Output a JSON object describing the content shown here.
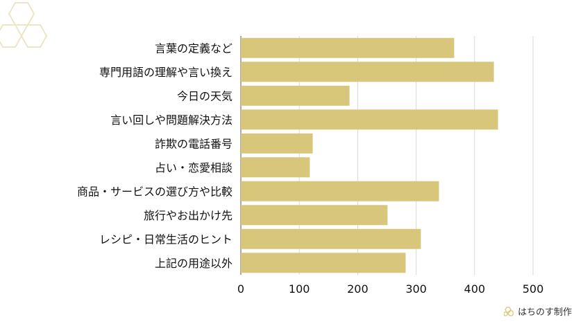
{
  "chart_data": {
    "type": "bar",
    "orientation": "horizontal",
    "categories": [
      "言葉の定義など",
      "専門用語の理解や言い換え",
      "今日の天気",
      "言い回しや問題解決方法",
      "詐欺の電話番号",
      "占い・恋愛相談",
      "商品・サービスの選び方や比較",
      "旅行やお出かけ先",
      "レシピ・日常生活のヒント",
      "上記の用途以外"
    ],
    "values": [
      365,
      433,
      186,
      440,
      123,
      118,
      339,
      251,
      308,
      282
    ],
    "xlim": [
      0,
      500
    ],
    "xticks": [
      0,
      100,
      200,
      300,
      400,
      500
    ],
    "grid": true,
    "bar_color": "#d8c77a"
  },
  "brand": {
    "label": "はちのす制作",
    "icon": "honeycomb-icon",
    "icon_color": "#d8c77a"
  },
  "decoration": {
    "icon": "hexagon-outline-icon",
    "color": "#ece6c8"
  }
}
